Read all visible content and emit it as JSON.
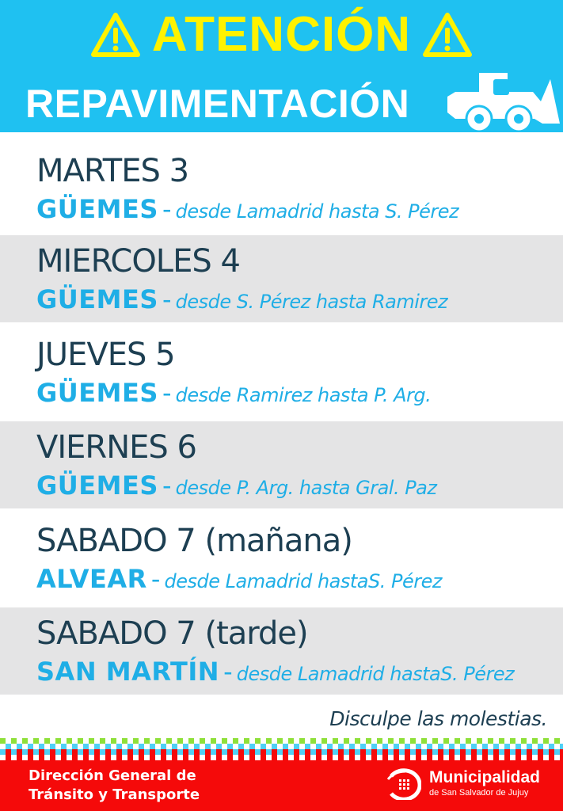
{
  "header": {
    "title": "ATENCIÓN",
    "subtitle": "REPAVIMENTACIÓN",
    "icons": [
      "warning-icon",
      "loader-vehicle-icon"
    ],
    "background_color": "#1fc1f1",
    "title_color": "#fff200"
  },
  "schedule": [
    {
      "day": "MARTES 3",
      "street": "GÜEMES",
      "separator": "-",
      "desc": "desde Lamadrid hasta S. Pérez"
    },
    {
      "day": "MIERCOLES 4",
      "street": "GÜEMES",
      "separator": "-",
      "desc": "desde S. Pérez hasta Ramirez"
    },
    {
      "day": "JUEVES 5",
      "street": "GÜEMES",
      "separator": "-",
      "desc": "desde Ramirez hasta P. Arg."
    },
    {
      "day": "VIERNES 6",
      "street": "GÜEMES",
      "separator": "-",
      "desc": "desde P. Arg. hasta Gral. Paz"
    },
    {
      "day": "SABADO 7 (mañana)",
      "street": "ALVEAR",
      "separator": "-",
      "desc": "desde Lamadrid hastaS. Pérez"
    },
    {
      "day": "SABADO 7 (tarde)",
      "street": "SAN MARTÍN",
      "separator": "-",
      "desc": "desde Lamadrid hastaS. Pérez"
    }
  ],
  "apology": "Disculpe las molestias.",
  "footer": {
    "dept_line1": "Dirección General de",
    "dept_line2": "Tránsito y Transporte",
    "muni_name": "Municipalidad",
    "muni_sub": "de San Salvador de Jujuy",
    "background_color": "#f50a0a"
  }
}
